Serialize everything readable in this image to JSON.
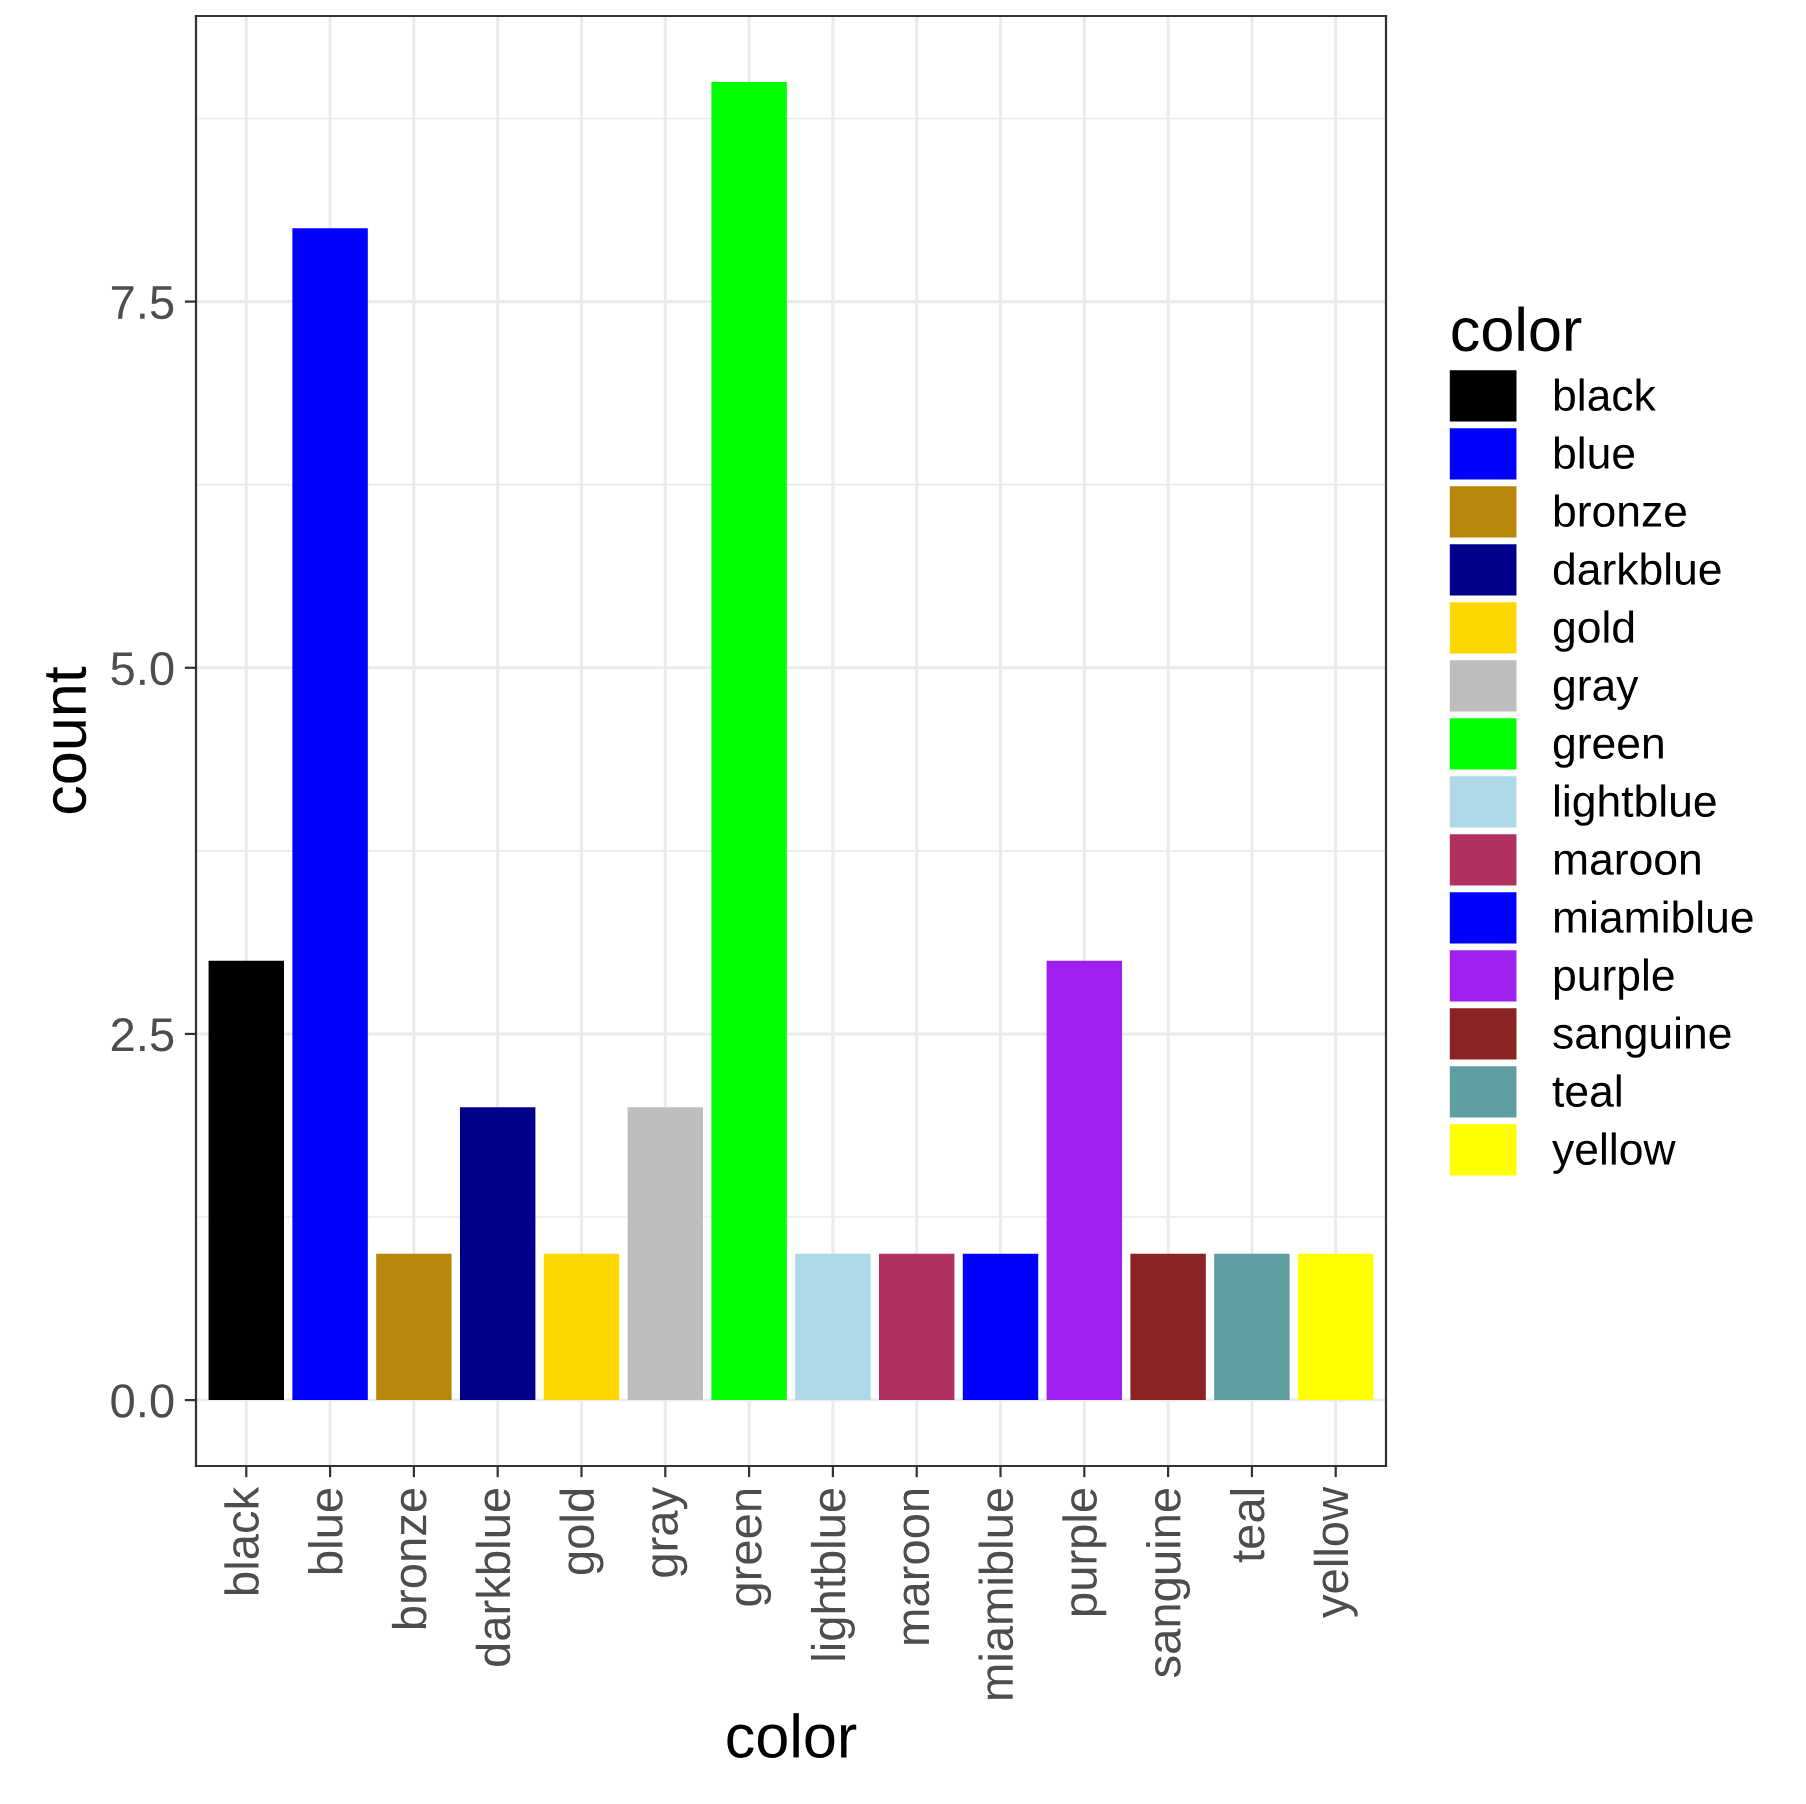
{
  "chart_data": {
    "type": "bar",
    "xlabel": "color",
    "ylabel": "count",
    "legend_title": "color",
    "categories": [
      "black",
      "blue",
      "bronze",
      "darkblue",
      "gold",
      "gray",
      "green",
      "lightblue",
      "maroon",
      "miamiblue",
      "purple",
      "sanguine",
      "teal",
      "yellow"
    ],
    "series": [
      {
        "name": "black",
        "color": "#000000",
        "values": [
          3,
          null,
          null,
          null,
          null,
          null,
          null,
          null,
          null,
          null,
          null,
          null,
          null,
          null
        ]
      },
      {
        "name": "blue",
        "color": "#0000ff",
        "values": [
          null,
          8,
          null,
          null,
          null,
          null,
          null,
          null,
          null,
          null,
          null,
          null,
          null,
          null
        ]
      },
      {
        "name": "bronze",
        "color": "#b8860b",
        "values": [
          null,
          null,
          1,
          null,
          null,
          null,
          null,
          null,
          null,
          null,
          null,
          null,
          null,
          null
        ]
      },
      {
        "name": "darkblue",
        "color": "#00008b",
        "values": [
          null,
          null,
          null,
          2,
          null,
          null,
          null,
          null,
          null,
          null,
          null,
          null,
          null,
          null
        ]
      },
      {
        "name": "gold",
        "color": "#ffd700",
        "values": [
          null,
          null,
          null,
          null,
          1,
          null,
          null,
          null,
          null,
          null,
          null,
          null,
          null,
          null
        ]
      },
      {
        "name": "gray",
        "color": "#bebebe",
        "values": [
          null,
          null,
          null,
          null,
          null,
          2,
          null,
          null,
          null,
          null,
          null,
          null,
          null,
          null
        ]
      },
      {
        "name": "green",
        "color": "#00ff00",
        "values": [
          null,
          null,
          null,
          null,
          null,
          null,
          9,
          null,
          null,
          null,
          null,
          null,
          null,
          null
        ]
      },
      {
        "name": "lightblue",
        "color": "#add8e6",
        "values": [
          null,
          null,
          null,
          null,
          null,
          null,
          null,
          1,
          null,
          null,
          null,
          null,
          null,
          null
        ]
      },
      {
        "name": "maroon",
        "color": "#b03060",
        "values": [
          null,
          null,
          null,
          null,
          null,
          null,
          null,
          null,
          1,
          null,
          null,
          null,
          null,
          null
        ]
      },
      {
        "name": "miamiblue",
        "color": "#0000ff",
        "values": [
          null,
          null,
          null,
          null,
          null,
          null,
          null,
          null,
          null,
          1,
          null,
          null,
          null,
          null
        ]
      },
      {
        "name": "purple",
        "color": "#a020f0",
        "values": [
          null,
          null,
          null,
          null,
          null,
          null,
          null,
          null,
          null,
          null,
          3,
          null,
          null,
          null
        ]
      },
      {
        "name": "sanguine",
        "color": "#8b2323",
        "values": [
          null,
          null,
          null,
          null,
          null,
          null,
          null,
          null,
          null,
          null,
          null,
          1,
          null,
          null
        ]
      },
      {
        "name": "teal",
        "color": "#5f9ea0",
        "values": [
          null,
          null,
          null,
          null,
          null,
          null,
          null,
          null,
          null,
          null,
          null,
          null,
          1,
          null
        ]
      },
      {
        "name": "yellow",
        "color": "#ffff00",
        "values": [
          null,
          null,
          null,
          null,
          null,
          null,
          null,
          null,
          null,
          null,
          null,
          null,
          null,
          1
        ]
      }
    ],
    "ylim": [
      -0.45,
      9.45
    ],
    "yticks": [
      {
        "value": 0,
        "label": "0.0"
      },
      {
        "value": 2.5,
        "label": "2.5"
      },
      {
        "value": 5,
        "label": "5.0"
      },
      {
        "value": 7.5,
        "label": "7.5"
      }
    ],
    "grid": true,
    "legend": "right"
  }
}
